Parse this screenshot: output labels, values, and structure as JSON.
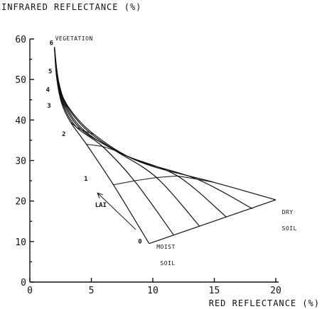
{
  "chart_data": {
    "type": "line",
    "ylabel": "INFRARED REFLECTANCE (%)",
    "xlabel": "RED REFLECTANCE (%)",
    "xlim": [
      0,
      20
    ],
    "ylim": [
      0,
      60
    ],
    "xticks": [
      "0",
      "5",
      "10",
      "15",
      "20"
    ],
    "yticks": [
      "0",
      "10",
      "20",
      "30",
      "40",
      "50",
      "60"
    ],
    "grid": false,
    "vegetation_point": {
      "label": "VEGETATION",
      "x": 2.0,
      "y": 58
    },
    "soil_line": {
      "labels": {
        "moist": [
          "MOIST",
          "SOIL"
        ],
        "dry": [
          "DRY",
          "SOIL"
        ]
      },
      "from": {
        "x": 9.7,
        "y": 9.5
      },
      "to": {
        "x": 20.0,
        "y": 20.3
      }
    },
    "series": [
      {
        "points": [
          [
            2.0,
            58
          ],
          [
            2.2,
            50
          ],
          [
            2.6,
            44
          ],
          [
            3.3,
            39.5
          ],
          [
            4.6,
            34
          ],
          [
            6.8,
            24
          ],
          [
            9.7,
            9.5
          ]
        ]
      },
      {
        "points": [
          [
            2.0,
            58
          ],
          [
            2.2,
            50
          ],
          [
            2.7,
            43.8
          ],
          [
            3.8,
            38.2
          ],
          [
            5.9,
            33.5
          ],
          [
            8.5,
            25
          ],
          [
            11.7,
            11.6
          ]
        ]
      },
      {
        "points": [
          [
            2.0,
            58
          ],
          [
            2.25,
            49.8
          ],
          [
            2.8,
            43.7
          ],
          [
            4.2,
            37.6
          ],
          [
            6.9,
            32.5
          ],
          [
            10.3,
            25.8
          ],
          [
            13.8,
            13.8
          ]
        ]
      },
      {
        "points": [
          [
            2.0,
            58
          ],
          [
            2.3,
            49.6
          ],
          [
            2.9,
            43.6
          ],
          [
            4.5,
            37.2
          ],
          [
            7.6,
            31.5
          ],
          [
            12.0,
            26.2
          ],
          [
            16.0,
            16.0
          ]
        ]
      },
      {
        "points": [
          [
            2.0,
            58
          ],
          [
            2.3,
            49.5
          ],
          [
            3.0,
            43.5
          ],
          [
            4.9,
            36.8
          ],
          [
            8.3,
            30.5
          ],
          [
            13.6,
            25.4
          ],
          [
            18.1,
            18.1
          ]
        ]
      },
      {
        "points": [
          [
            2.0,
            58
          ],
          [
            2.35,
            49.4
          ],
          [
            3.1,
            43.4
          ],
          [
            5.2,
            36.5
          ],
          [
            9.0,
            29.6
          ],
          [
            15.0,
            24.6
          ],
          [
            20.0,
            20.3
          ]
        ]
      }
    ],
    "lai_isolines": [
      {
        "label": "1",
        "points": [
          [
            6.8,
            24
          ],
          [
            8.5,
            25
          ],
          [
            10.3,
            25.8
          ],
          [
            12.0,
            26.2
          ],
          [
            13.6,
            25.4
          ],
          [
            15.0,
            24.6
          ]
        ]
      },
      {
        "label": "2",
        "points": [
          [
            4.6,
            34
          ],
          [
            5.9,
            33.5
          ],
          [
            6.9,
            32.5
          ],
          [
            7.6,
            31.5
          ],
          [
            8.3,
            30.5
          ],
          [
            9.0,
            29.6
          ]
        ]
      },
      {
        "label": "3",
        "points": [
          [
            3.3,
            39.5
          ],
          [
            3.8,
            38.2
          ],
          [
            4.2,
            37.6
          ],
          [
            4.5,
            37.2
          ],
          [
            4.9,
            36.8
          ],
          [
            5.2,
            36.5
          ]
        ]
      },
      {
        "label": "4",
        "points": [
          [
            2.6,
            44
          ],
          [
            2.7,
            43.8
          ],
          [
            2.8,
            43.7
          ],
          [
            2.9,
            43.6
          ],
          [
            3.0,
            43.5
          ],
          [
            3.1,
            43.4
          ]
        ]
      },
      {
        "label": "5",
        "points": [
          [
            2.2,
            50
          ],
          [
            2.2,
            50
          ],
          [
            2.25,
            49.8
          ],
          [
            2.3,
            49.6
          ],
          [
            2.3,
            49.5
          ],
          [
            2.35,
            49.4
          ]
        ]
      }
    ],
    "lai_labels": [
      {
        "label": "6",
        "x": 1.6,
        "y": 58.5
      },
      {
        "label": "5",
        "x": 1.5,
        "y": 51.5
      },
      {
        "label": "4",
        "x": 1.3,
        "y": 47
      },
      {
        "label": "3",
        "x": 1.4,
        "y": 43
      },
      {
        "label": "2",
        "x": 2.6,
        "y": 36
      },
      {
        "label": "1",
        "x": 4.4,
        "y": 25
      },
      {
        "label": "0",
        "x": 8.8,
        "y": 9.5
      }
    ],
    "lai_arrow": {
      "label": "LAI",
      "from": {
        "x": 8.6,
        "y": 13
      },
      "to": {
        "x": 5.5,
        "y": 22
      },
      "label_at": {
        "x": 5.3,
        "y": 18.5
      }
    }
  }
}
